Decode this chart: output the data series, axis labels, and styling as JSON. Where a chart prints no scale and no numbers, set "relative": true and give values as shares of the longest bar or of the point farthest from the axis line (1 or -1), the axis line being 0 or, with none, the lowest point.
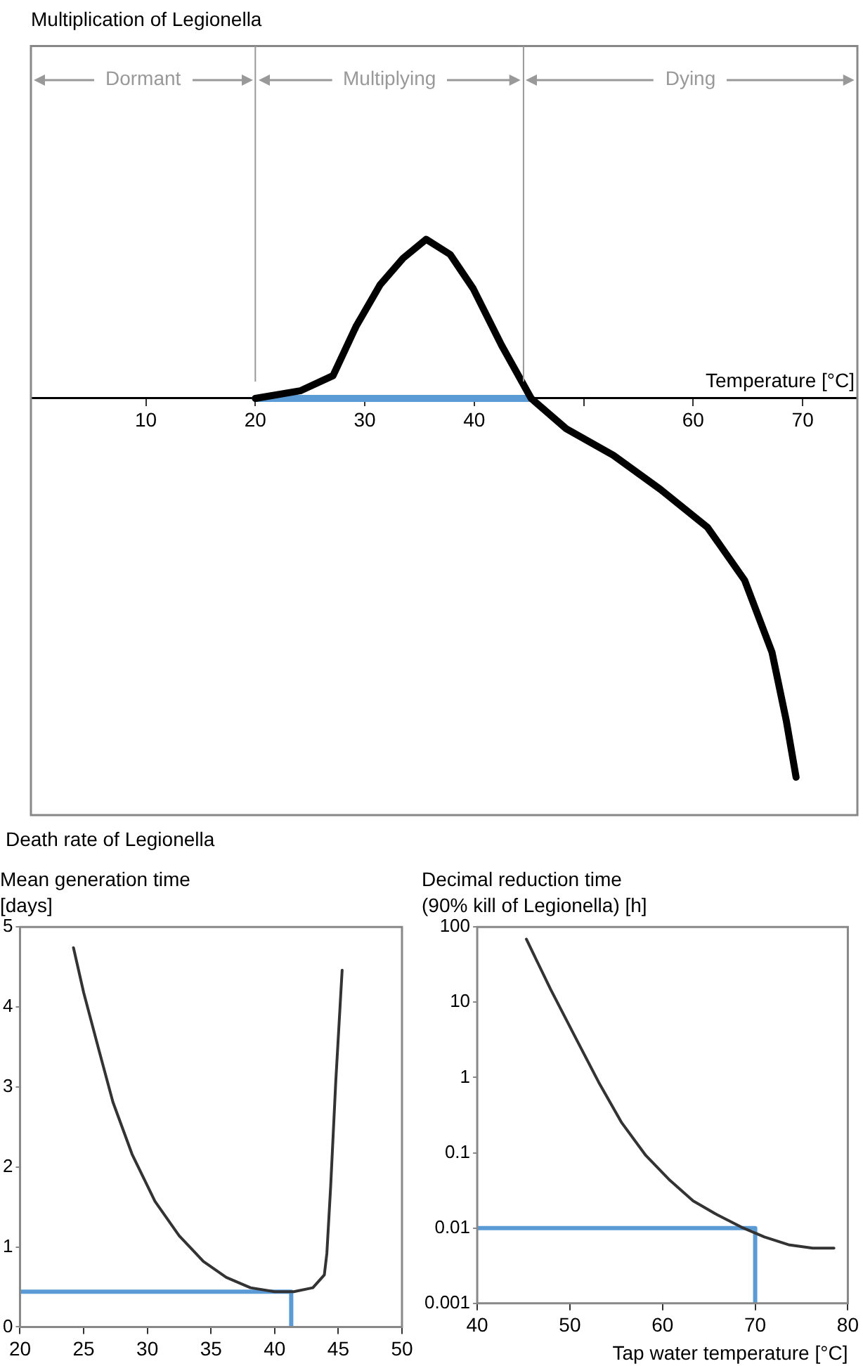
{
  "chart_data": [
    {
      "type": "line",
      "title": "Multiplication of Legionella",
      "xlabel": "Temperature [°C]",
      "relative": true,
      "xlim": [
        -0.5,
        75
      ],
      "xticks": [
        10,
        20,
        30,
        40,
        {
          "value": 50,
          "label": null
        },
        60,
        70
      ],
      "grid": false,
      "legend": false,
      "marker": "none",
      "series": [
        {
          "color": "#000000",
          "x": [
            20,
            24.1,
            27.1,
            29.2,
            31.4,
            33.5,
            35.6,
            37.8,
            39.9,
            42.5,
            45.2,
            48.4,
            52.7,
            57.0,
            61.3,
            64.7,
            67.2,
            68.5,
            69.4
          ],
          "values": [
            0,
            0.02,
            0.06,
            0.19,
            0.3,
            0.37,
            0.42,
            0.38,
            0.29,
            0.14,
            0,
            -0.08,
            -0.15,
            -0.24,
            -0.34,
            -0.48,
            -0.67,
            -0.85,
            -1
          ]
        },
        {
          "color": "#5b9bd5",
          "x": [
            20,
            45.2
          ],
          "values": [
            0,
            0
          ]
        }
      ],
      "ref_lines": [
        {
          "axis": "x",
          "value": 20,
          "color": "#999999"
        },
        {
          "axis": "x",
          "value": 44.5,
          "color": "#999999"
        }
      ],
      "annotations": [
        "Dormant",
        "Multiplying",
        "Dying",
        "Death rate of Legionella"
      ]
    },
    {
      "type": "line",
      "title": "Mean generation time",
      "subtitle": "[days]",
      "xlim": [
        20,
        50
      ],
      "xticks": [
        20,
        25,
        30,
        35,
        40,
        45,
        50
      ],
      "ylim": [
        0,
        5
      ],
      "yticks": [
        0,
        1,
        2,
        3,
        4,
        5
      ],
      "grid": false,
      "legend": false,
      "marker": "none",
      "series": [
        {
          "color": "#333333",
          "x": [
            24.2,
            25.0,
            26.2,
            27.3,
            28.8,
            30.6,
            32.5,
            34.4,
            36.2,
            38.1,
            40.0,
            41.5,
            43.0,
            43.9,
            44.1,
            44.4,
            44.8,
            45.3
          ],
          "values": [
            4.74,
            4.18,
            3.46,
            2.81,
            2.16,
            1.57,
            1.14,
            0.82,
            0.62,
            0.49,
            0.44,
            0.44,
            0.49,
            0.65,
            0.92,
            1.76,
            3.07,
            4.46
          ]
        },
        {
          "color": "#5b9bd5",
          "x": [
            20,
            41.3,
            41.3
          ],
          "values": [
            0.44,
            0.44,
            0
          ]
        }
      ]
    },
    {
      "type": "line",
      "title": "Decimal reduction time",
      "subtitle": "(90% kill of Legionella) [h]",
      "xlabel": "Tap water temperature [°C]",
      "log": "y",
      "xlim": [
        40,
        80
      ],
      "xticks": [
        40,
        50,
        60,
        70,
        80
      ],
      "ylim": [
        0.001,
        100
      ],
      "yticks": [
        0.001,
        0.01,
        0.1,
        1,
        10,
        100
      ],
      "grid": false,
      "legend": false,
      "marker": "none",
      "series": [
        {
          "color": "#333333",
          "x": [
            45.3,
            47.9,
            50.5,
            53.1,
            55.6,
            58.2,
            60.8,
            63.3,
            65.9,
            68.5,
            71.0,
            73.6,
            76.2,
            78.5
          ],
          "values": [
            69,
            15,
            3.6,
            0.87,
            0.25,
            0.092,
            0.043,
            0.023,
            0.015,
            0.0103,
            0.0076,
            0.006,
            0.0054,
            0.0054
          ]
        },
        {
          "color": "#5b9bd5",
          "x": [
            40,
            70,
            70
          ],
          "values": [
            0.01,
            0.01,
            0.001
          ]
        }
      ]
    }
  ]
}
